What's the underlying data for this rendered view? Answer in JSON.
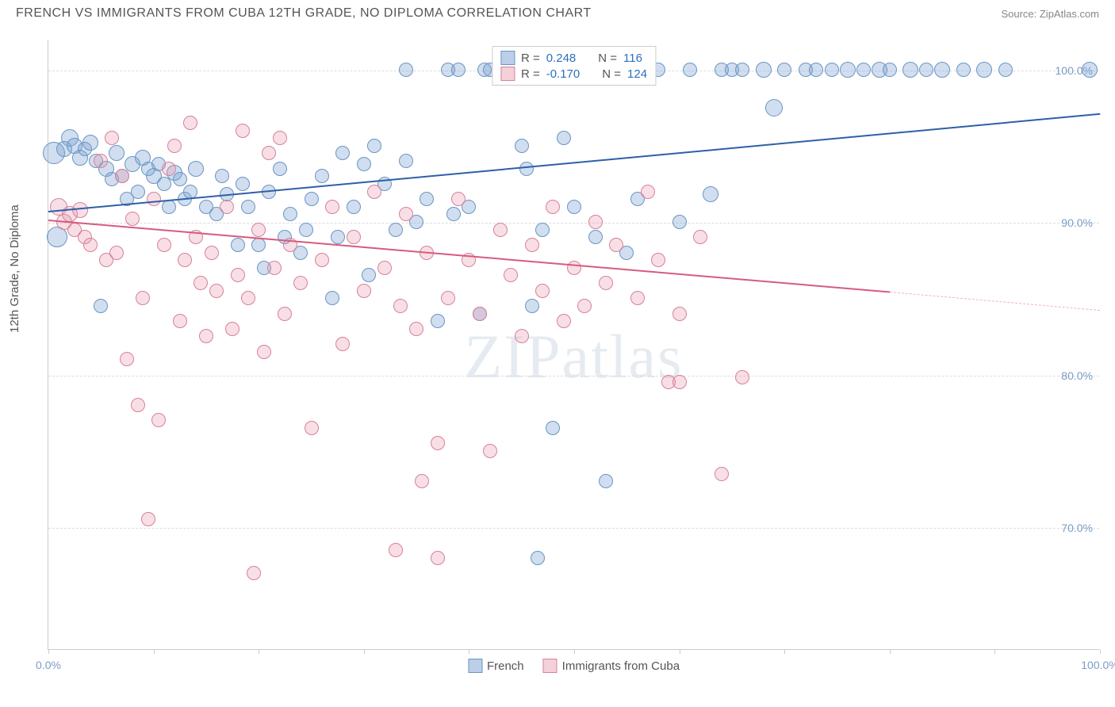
{
  "header": {
    "title": "FRENCH VS IMMIGRANTS FROM CUBA 12TH GRADE, NO DIPLOMA CORRELATION CHART",
    "source": "Source: ZipAtlas.com"
  },
  "ylabel": "12th Grade, No Diploma",
  "watermark_zip": "ZIP",
  "watermark_atlas": "atlas",
  "chart": {
    "type": "scatter",
    "xlim": [
      0,
      100
    ],
    "ylim": [
      62,
      102
    ],
    "yticks": [
      {
        "v": 70.0,
        "label": "70.0%"
      },
      {
        "v": 80.0,
        "label": "80.0%"
      },
      {
        "v": 90.0,
        "label": "90.0%"
      },
      {
        "v": 100.0,
        "label": "100.0%"
      }
    ],
    "xticks_marks": [
      0,
      10,
      20,
      30,
      40,
      50,
      60,
      70,
      80,
      90,
      100
    ],
    "xtick_labels": [
      {
        "v": 0,
        "label": "0.0%"
      },
      {
        "v": 100,
        "label": "100.0%"
      }
    ],
    "grid_color": "#dddddd",
    "background_color": "#ffffff",
    "series": [
      {
        "name": "French",
        "class": "blue",
        "color_fill": "rgba(120,160,210,0.35)",
        "color_stroke": "#6a95c4",
        "regression": {
          "x0": 0,
          "y0": 90.8,
          "x1": 100,
          "y1": 97.2,
          "color": "#2e5fa8"
        },
        "R": "0.248",
        "N": "116",
        "points": [
          {
            "x": 0.5,
            "y": 94.5,
            "r": 14
          },
          {
            "x": 0.8,
            "y": 89.0,
            "r": 13
          },
          {
            "x": 1.5,
            "y": 94.8,
            "r": 10
          },
          {
            "x": 2,
            "y": 95.5,
            "r": 11
          },
          {
            "x": 2.5,
            "y": 95.0,
            "r": 10
          },
          {
            "x": 3,
            "y": 94.2,
            "r": 10
          },
          {
            "x": 3.5,
            "y": 94.8,
            "r": 9
          },
          {
            "x": 4,
            "y": 95.2,
            "r": 10
          },
          {
            "x": 4.5,
            "y": 94.0,
            "r": 9
          },
          {
            "x": 5,
            "y": 84.5,
            "r": 9
          },
          {
            "x": 5.5,
            "y": 93.5,
            "r": 10
          },
          {
            "x": 6,
            "y": 92.8,
            "r": 9
          },
          {
            "x": 6.5,
            "y": 94.5,
            "r": 10
          },
          {
            "x": 7,
            "y": 93.0,
            "r": 9
          },
          {
            "x": 7.5,
            "y": 91.5,
            "r": 9
          },
          {
            "x": 8,
            "y": 93.8,
            "r": 10
          },
          {
            "x": 8.5,
            "y": 92.0,
            "r": 9
          },
          {
            "x": 9,
            "y": 94.2,
            "r": 10
          },
          {
            "x": 9.5,
            "y": 93.5,
            "r": 9
          },
          {
            "x": 10,
            "y": 93.0,
            "r": 10
          },
          {
            "x": 10.5,
            "y": 93.8,
            "r": 9
          },
          {
            "x": 11,
            "y": 92.5,
            "r": 9
          },
          {
            "x": 11.5,
            "y": 91.0,
            "r": 9
          },
          {
            "x": 12,
            "y": 93.2,
            "r": 10
          },
          {
            "x": 12.5,
            "y": 92.8,
            "r": 9
          },
          {
            "x": 13,
            "y": 91.5,
            "r": 9
          },
          {
            "x": 13.5,
            "y": 92.0,
            "r": 9
          },
          {
            "x": 14,
            "y": 93.5,
            "r": 10
          },
          {
            "x": 15,
            "y": 91.0,
            "r": 9
          },
          {
            "x": 16,
            "y": 90.5,
            "r": 9
          },
          {
            "x": 16.5,
            "y": 93.0,
            "r": 9
          },
          {
            "x": 17,
            "y": 91.8,
            "r": 9
          },
          {
            "x": 18,
            "y": 88.5,
            "r": 9
          },
          {
            "x": 18.5,
            "y": 92.5,
            "r": 9
          },
          {
            "x": 19,
            "y": 91.0,
            "r": 9
          },
          {
            "x": 20,
            "y": 88.5,
            "r": 9
          },
          {
            "x": 20.5,
            "y": 87.0,
            "r": 9
          },
          {
            "x": 21,
            "y": 92.0,
            "r": 9
          },
          {
            "x": 22,
            "y": 93.5,
            "r": 9
          },
          {
            "x": 22.5,
            "y": 89.0,
            "r": 9
          },
          {
            "x": 23,
            "y": 90.5,
            "r": 9
          },
          {
            "x": 24,
            "y": 88.0,
            "r": 9
          },
          {
            "x": 24.5,
            "y": 89.5,
            "r": 9
          },
          {
            "x": 25,
            "y": 91.5,
            "r": 9
          },
          {
            "x": 26,
            "y": 93.0,
            "r": 9
          },
          {
            "x": 27,
            "y": 85.0,
            "r": 9
          },
          {
            "x": 27.5,
            "y": 89.0,
            "r": 9
          },
          {
            "x": 28,
            "y": 94.5,
            "r": 9
          },
          {
            "x": 29,
            "y": 91.0,
            "r": 9
          },
          {
            "x": 30,
            "y": 93.8,
            "r": 9
          },
          {
            "x": 30.5,
            "y": 86.5,
            "r": 9
          },
          {
            "x": 31,
            "y": 95.0,
            "r": 9
          },
          {
            "x": 32,
            "y": 92.5,
            "r": 9
          },
          {
            "x": 33,
            "y": 89.5,
            "r": 9
          },
          {
            "x": 34,
            "y": 94.0,
            "r": 9
          },
          {
            "x": 34,
            "y": 100,
            "r": 9
          },
          {
            "x": 35,
            "y": 90.0,
            "r": 9
          },
          {
            "x": 36,
            "y": 91.5,
            "r": 9
          },
          {
            "x": 37,
            "y": 83.5,
            "r": 9
          },
          {
            "x": 38,
            "y": 100,
            "r": 9
          },
          {
            "x": 38.5,
            "y": 90.5,
            "r": 9
          },
          {
            "x": 39,
            "y": 100,
            "r": 9
          },
          {
            "x": 40,
            "y": 91.0,
            "r": 9
          },
          {
            "x": 41,
            "y": 84.0,
            "r": 9
          },
          {
            "x": 41.5,
            "y": 100,
            "r": 9
          },
          {
            "x": 42,
            "y": 100,
            "r": 9
          },
          {
            "x": 43,
            "y": 100,
            "r": 9
          },
          {
            "x": 44,
            "y": 100,
            "r": 9
          },
          {
            "x": 45,
            "y": 95.0,
            "r": 9
          },
          {
            "x": 45.5,
            "y": 93.5,
            "r": 9
          },
          {
            "x": 46,
            "y": 100,
            "r": 9
          },
          {
            "x": 46,
            "y": 84.5,
            "r": 9
          },
          {
            "x": 46.5,
            "y": 68.0,
            "r": 9
          },
          {
            "x": 47,
            "y": 89.5,
            "r": 9
          },
          {
            "x": 48,
            "y": 76.5,
            "r": 9
          },
          {
            "x": 49,
            "y": 95.5,
            "r": 9
          },
          {
            "x": 50,
            "y": 91.0,
            "r": 9
          },
          {
            "x": 51,
            "y": 100,
            "r": 9
          },
          {
            "x": 52,
            "y": 89.0,
            "r": 9
          },
          {
            "x": 53,
            "y": 73.0,
            "r": 9
          },
          {
            "x": 55,
            "y": 88.0,
            "r": 9
          },
          {
            "x": 56,
            "y": 91.5,
            "r": 9
          },
          {
            "x": 57,
            "y": 100,
            "r": 9
          },
          {
            "x": 58,
            "y": 100,
            "r": 9
          },
          {
            "x": 60,
            "y": 90.0,
            "r": 9
          },
          {
            "x": 61,
            "y": 100,
            "r": 9
          },
          {
            "x": 63,
            "y": 91.8,
            "r": 10
          },
          {
            "x": 64,
            "y": 100,
            "r": 9
          },
          {
            "x": 65,
            "y": 100,
            "r": 9
          },
          {
            "x": 66,
            "y": 100,
            "r": 9
          },
          {
            "x": 68,
            "y": 100,
            "r": 10
          },
          {
            "x": 69,
            "y": 97.5,
            "r": 11
          },
          {
            "x": 70,
            "y": 100,
            "r": 9
          },
          {
            "x": 72,
            "y": 100,
            "r": 9
          },
          {
            "x": 73,
            "y": 100,
            "r": 9
          },
          {
            "x": 74.5,
            "y": 100,
            "r": 9
          },
          {
            "x": 76,
            "y": 100,
            "r": 10
          },
          {
            "x": 77.5,
            "y": 100,
            "r": 9
          },
          {
            "x": 79,
            "y": 100,
            "r": 10
          },
          {
            "x": 80,
            "y": 100,
            "r": 9
          },
          {
            "x": 82,
            "y": 100,
            "r": 10
          },
          {
            "x": 83.5,
            "y": 100,
            "r": 9
          },
          {
            "x": 85,
            "y": 100,
            "r": 10
          },
          {
            "x": 87,
            "y": 100,
            "r": 9
          },
          {
            "x": 89,
            "y": 100,
            "r": 10
          },
          {
            "x": 91,
            "y": 100,
            "r": 9
          },
          {
            "x": 99,
            "y": 100,
            "r": 10
          }
        ]
      },
      {
        "name": "Immigrants from Cuba",
        "class": "pink",
        "color_fill": "rgba(230,150,170,0.3)",
        "color_stroke": "#d8809a",
        "regression": {
          "x0": 0,
          "y0": 90.2,
          "x1": 80,
          "y1": 85.5,
          "dash_to": 100,
          "dash_y": 84.3,
          "color": "#d65b7e"
        },
        "R": "-0.170",
        "N": "124",
        "points": [
          {
            "x": 1,
            "y": 91.0,
            "r": 11
          },
          {
            "x": 1.5,
            "y": 90.0,
            "r": 10
          },
          {
            "x": 2,
            "y": 90.5,
            "r": 10
          },
          {
            "x": 2.5,
            "y": 89.5,
            "r": 9
          },
          {
            "x": 3,
            "y": 90.8,
            "r": 10
          },
          {
            "x": 3.5,
            "y": 89.0,
            "r": 9
          },
          {
            "x": 4,
            "y": 88.5,
            "r": 9
          },
          {
            "x": 5,
            "y": 94.0,
            "r": 9
          },
          {
            "x": 5.5,
            "y": 87.5,
            "r": 9
          },
          {
            "x": 6,
            "y": 95.5,
            "r": 9
          },
          {
            "x": 6.5,
            "y": 88.0,
            "r": 9
          },
          {
            "x": 7,
            "y": 93.0,
            "r": 9
          },
          {
            "x": 7.5,
            "y": 81.0,
            "r": 9
          },
          {
            "x": 8,
            "y": 90.2,
            "r": 9
          },
          {
            "x": 8.5,
            "y": 78.0,
            "r": 9
          },
          {
            "x": 9,
            "y": 85.0,
            "r": 9
          },
          {
            "x": 9.5,
            "y": 70.5,
            "r": 9
          },
          {
            "x": 10,
            "y": 91.5,
            "r": 9
          },
          {
            "x": 10.5,
            "y": 77.0,
            "r": 9
          },
          {
            "x": 11,
            "y": 88.5,
            "r": 9
          },
          {
            "x": 11.5,
            "y": 93.5,
            "r": 9
          },
          {
            "x": 12,
            "y": 95.0,
            "r": 9
          },
          {
            "x": 12.5,
            "y": 83.5,
            "r": 9
          },
          {
            "x": 13,
            "y": 87.5,
            "r": 9
          },
          {
            "x": 13.5,
            "y": 96.5,
            "r": 9
          },
          {
            "x": 14,
            "y": 89.0,
            "r": 9
          },
          {
            "x": 14.5,
            "y": 86.0,
            "r": 9
          },
          {
            "x": 15,
            "y": 82.5,
            "r": 9
          },
          {
            "x": 15.5,
            "y": 88.0,
            "r": 9
          },
          {
            "x": 16,
            "y": 85.5,
            "r": 9
          },
          {
            "x": 17,
            "y": 91.0,
            "r": 9
          },
          {
            "x": 17.5,
            "y": 83.0,
            "r": 9
          },
          {
            "x": 18,
            "y": 86.5,
            "r": 9
          },
          {
            "x": 18.5,
            "y": 96.0,
            "r": 9
          },
          {
            "x": 19,
            "y": 85.0,
            "r": 9
          },
          {
            "x": 19.5,
            "y": 67.0,
            "r": 9
          },
          {
            "x": 20,
            "y": 89.5,
            "r": 9
          },
          {
            "x": 20.5,
            "y": 81.5,
            "r": 9
          },
          {
            "x": 21,
            "y": 94.5,
            "r": 9
          },
          {
            "x": 21.5,
            "y": 87.0,
            "r": 9
          },
          {
            "x": 22,
            "y": 95.5,
            "r": 9
          },
          {
            "x": 22.5,
            "y": 84.0,
            "r": 9
          },
          {
            "x": 23,
            "y": 88.5,
            "r": 9
          },
          {
            "x": 24,
            "y": 86.0,
            "r": 9
          },
          {
            "x": 25,
            "y": 76.5,
            "r": 9
          },
          {
            "x": 26,
            "y": 87.5,
            "r": 9
          },
          {
            "x": 27,
            "y": 91.0,
            "r": 9
          },
          {
            "x": 28,
            "y": 82.0,
            "r": 9
          },
          {
            "x": 29,
            "y": 89.0,
            "r": 9
          },
          {
            "x": 30,
            "y": 85.5,
            "r": 9
          },
          {
            "x": 31,
            "y": 92.0,
            "r": 9
          },
          {
            "x": 32,
            "y": 87.0,
            "r": 9
          },
          {
            "x": 33,
            "y": 68.5,
            "r": 9
          },
          {
            "x": 33.5,
            "y": 84.5,
            "r": 9
          },
          {
            "x": 34,
            "y": 90.5,
            "r": 9
          },
          {
            "x": 35,
            "y": 83.0,
            "r": 9
          },
          {
            "x": 35.5,
            "y": 73.0,
            "r": 9
          },
          {
            "x": 36,
            "y": 88.0,
            "r": 9
          },
          {
            "x": 37,
            "y": 75.5,
            "r": 9
          },
          {
            "x": 37,
            "y": 68.0,
            "r": 9
          },
          {
            "x": 38,
            "y": 85.0,
            "r": 9
          },
          {
            "x": 39,
            "y": 91.5,
            "r": 9
          },
          {
            "x": 40,
            "y": 87.5,
            "r": 9
          },
          {
            "x": 41,
            "y": 84.0,
            "r": 9
          },
          {
            "x": 42,
            "y": 75.0,
            "r": 9
          },
          {
            "x": 43,
            "y": 89.5,
            "r": 9
          },
          {
            "x": 44,
            "y": 86.5,
            "r": 9
          },
          {
            "x": 45,
            "y": 82.5,
            "r": 9
          },
          {
            "x": 46,
            "y": 88.5,
            "r": 9
          },
          {
            "x": 47,
            "y": 85.5,
            "r": 9
          },
          {
            "x": 48,
            "y": 91.0,
            "r": 9
          },
          {
            "x": 49,
            "y": 83.5,
            "r": 9
          },
          {
            "x": 50,
            "y": 87.0,
            "r": 9
          },
          {
            "x": 51,
            "y": 84.5,
            "r": 9
          },
          {
            "x": 52,
            "y": 90.0,
            "r": 9
          },
          {
            "x": 53,
            "y": 86.0,
            "r": 9
          },
          {
            "x": 54,
            "y": 88.5,
            "r": 9
          },
          {
            "x": 56,
            "y": 85.0,
            "r": 9
          },
          {
            "x": 57,
            "y": 92.0,
            "r": 9
          },
          {
            "x": 58,
            "y": 87.5,
            "r": 9
          },
          {
            "x": 59,
            "y": 79.5,
            "r": 9
          },
          {
            "x": 60,
            "y": 84.0,
            "r": 9
          },
          {
            "x": 60,
            "y": 79.5,
            "r": 9
          },
          {
            "x": 62,
            "y": 89.0,
            "r": 9
          },
          {
            "x": 64,
            "y": 73.5,
            "r": 9
          },
          {
            "x": 66,
            "y": 79.8,
            "r": 9
          }
        ]
      }
    ]
  },
  "legend_top": {
    "rows": [
      {
        "class": "blue",
        "r_label": "R =",
        "r_val": "0.248",
        "n_label": "N =",
        "n_val": "116"
      },
      {
        "class": "pink",
        "r_label": "R =",
        "r_val": "-0.170",
        "n_label": "N =",
        "n_val": "124"
      }
    ]
  },
  "legend_bottom": [
    {
      "class": "blue",
      "label": "French"
    },
    {
      "class": "pink",
      "label": "Immigrants from Cuba"
    }
  ]
}
